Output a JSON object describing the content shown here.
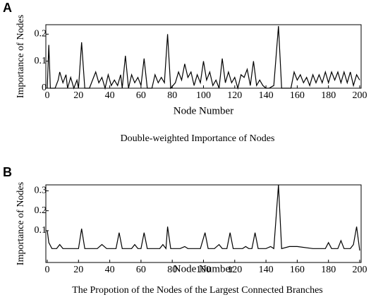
{
  "chart_data": [
    {
      "type": "line",
      "panel_label": "A",
      "caption": "Double-weighted Importance of Nodes",
      "xlabel": "Node Number",
      "ylabel": "Importance of Nodes",
      "color": "#000000",
      "xlim": [
        0,
        200
      ],
      "ylim": [
        0,
        0.235
      ],
      "xticks": [
        0,
        20,
        40,
        60,
        80,
        100,
        120,
        140,
        160,
        180,
        200
      ],
      "yticks": [
        0,
        0.1,
        0.2
      ],
      "x": [
        0,
        1,
        2,
        5,
        7,
        8,
        10,
        12,
        13,
        15,
        17,
        19,
        20,
        22,
        24,
        27,
        29,
        31,
        33,
        35,
        37,
        39,
        41,
        43,
        45,
        47,
        48,
        50,
        52,
        54,
        56,
        58,
        60,
        62,
        64,
        67,
        69,
        71,
        73,
        75,
        77,
        79,
        82,
        84,
        86,
        88,
        90,
        92,
        94,
        96,
        98,
        100,
        102,
        104,
        106,
        108,
        110,
        112,
        114,
        116,
        118,
        120,
        122,
        124,
        126,
        128,
        130,
        132,
        134,
        136,
        138,
        140,
        142,
        145,
        148,
        150,
        156,
        158,
        160,
        162,
        164,
        166,
        168,
        170,
        172,
        174,
        176,
        178,
        180,
        182,
        184,
        186,
        188,
        190,
        192,
        194,
        196,
        198,
        200
      ],
      "values": [
        0,
        0.16,
        0,
        0,
        0.03,
        0.06,
        0.02,
        0.05,
        0,
        0.04,
        0,
        0.03,
        0,
        0.17,
        0,
        0,
        0.03,
        0.06,
        0.02,
        0.04,
        0,
        0.05,
        0.01,
        0.03,
        0.01,
        0.05,
        0,
        0.12,
        0,
        0.05,
        0.02,
        0.04,
        0.01,
        0.11,
        0,
        0,
        0.05,
        0.02,
        0.04,
        0.02,
        0.2,
        0,
        0.02,
        0.06,
        0.03,
        0.09,
        0.04,
        0.06,
        0.01,
        0.05,
        0.02,
        0.1,
        0.03,
        0.06,
        0.01,
        0.03,
        0,
        0.11,
        0.02,
        0.06,
        0.02,
        0.04,
        0,
        0.05,
        0.04,
        0.07,
        0.01,
        0.1,
        0.01,
        0.03,
        0.01,
        0,
        0,
        0.01,
        0.23,
        0,
        0,
        0.06,
        0.03,
        0.05,
        0.02,
        0.04,
        0.01,
        0.05,
        0.02,
        0.05,
        0.02,
        0.06,
        0.02,
        0.06,
        0.03,
        0.06,
        0.02,
        0.06,
        0.02,
        0.06,
        0.01,
        0.05,
        0.03
      ]
    },
    {
      "type": "line",
      "panel_label": "B",
      "caption": "The Propotion of the Nodes of the Largest Connected Branches",
      "xlabel": "Node Number",
      "ylabel": "Importance of Nodes",
      "color": "#000000",
      "xlim": [
        0,
        200
      ],
      "ylim": [
        -0.06,
        0.33
      ],
      "xticks": [
        0,
        20,
        40,
        60,
        80,
        100,
        120,
        140,
        160,
        180,
        200
      ],
      "yticks": [
        0.1,
        0.2,
        0.3
      ],
      "x": [
        0,
        1,
        3,
        6,
        8,
        10,
        20,
        22,
        24,
        32,
        35,
        38,
        44,
        46,
        48,
        54,
        56,
        58,
        60,
        62,
        64,
        72,
        74,
        76,
        77,
        79,
        85,
        88,
        90,
        98,
        101,
        103,
        107,
        110,
        112,
        115,
        117,
        119,
        125,
        127,
        129,
        131,
        133,
        135,
        140,
        143,
        145,
        148,
        150,
        155,
        160,
        170,
        178,
        180,
        182,
        186,
        188,
        190,
        194,
        196,
        198,
        200
      ],
      "values": [
        0.1,
        0.04,
        0.01,
        0.01,
        0.03,
        0.01,
        0.01,
        0.11,
        0.01,
        0.01,
        0.03,
        0.01,
        0.01,
        0.09,
        0.01,
        0.01,
        0.03,
        0.01,
        0.01,
        0.09,
        0.01,
        0.01,
        0.03,
        0.01,
        0.12,
        0.01,
        0.01,
        0.02,
        0.01,
        0.01,
        0.09,
        0.01,
        0.01,
        0.03,
        0.01,
        0.01,
        0.09,
        0.01,
        0.01,
        0.02,
        0.01,
        0.01,
        0.09,
        0.01,
        0.01,
        0.02,
        0.01,
        0.33,
        0.01,
        0.02,
        0.02,
        0.01,
        0.01,
        0.04,
        0.01,
        0.01,
        0.05,
        0.01,
        0.01,
        0.03,
        0.12,
        0
      ]
    }
  ]
}
